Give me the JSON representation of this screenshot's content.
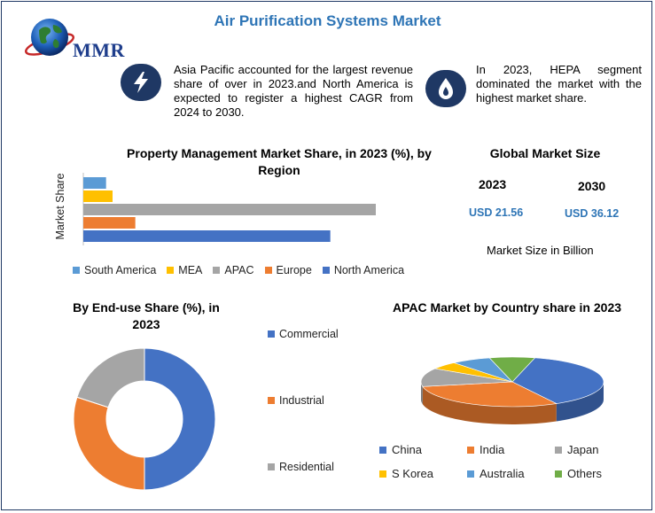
{
  "header": {
    "title": "Air Purification Systems Market",
    "logo_text": "MMR"
  },
  "facts": [
    {
      "icon": "lightning-icon",
      "text": "Asia Pacific accounted for the largest revenue share of over in 2023.and North America is expected to register a highest CAGR from 2024 to 2030."
    },
    {
      "icon": "flame-drop-icon",
      "text": "In 2023, HEPA segment dominated the market with the highest market share."
    }
  ],
  "colors": {
    "blue_dark": "#4472c4",
    "orange": "#ed7d31",
    "gray": "#a5a5a5",
    "yellow": "#ffc000",
    "light_blue": "#5b9bd5",
    "green": "#70ad47",
    "navy": "#1f3864",
    "title_blue": "#2e75b6"
  },
  "market_size": {
    "title": "Global Market Size",
    "years": [
      "2023",
      "2030"
    ],
    "values": [
      "USD 21.56",
      "USD 36.12"
    ],
    "note": "Market Size in Billion"
  },
  "chart_data": [
    {
      "type": "bar",
      "orientation": "horizontal",
      "title": "Property Management Market Share, in 2023 (%), by Region",
      "xlabel": "",
      "ylabel": "Market Share",
      "xlim": [
        0,
        45
      ],
      "categories": [
        "South America",
        "MEA",
        "APAC",
        "Europe",
        "North America"
      ],
      "values": [
        3.5,
        4.5,
        45,
        8,
        38
      ],
      "colors": [
        "#5b9bd5",
        "#ffc000",
        "#a5a5a5",
        "#ed7d31",
        "#4472c4"
      ],
      "legend": "bottom"
    },
    {
      "type": "pie",
      "variant": "donut",
      "title": "By End-use Share (%), in 2023",
      "categories": [
        "Commercial",
        "Industrial",
        "Residential"
      ],
      "values": [
        50,
        30,
        20
      ],
      "colors": [
        "#4472c4",
        "#ed7d31",
        "#a5a5a5"
      ],
      "legend": "right"
    },
    {
      "type": "pie",
      "variant": "3d",
      "title": "APAC Market by Country share in 2023",
      "categories": [
        "China",
        "India",
        "Japan",
        "S Korea",
        "Australia",
        "Others"
      ],
      "values": [
        38,
        30,
        12,
        5,
        7,
        8
      ],
      "colors": [
        "#4472c4",
        "#ed7d31",
        "#a5a5a5",
        "#ffc000",
        "#5b9bd5",
        "#70ad47"
      ],
      "legend": "bottom"
    }
  ]
}
